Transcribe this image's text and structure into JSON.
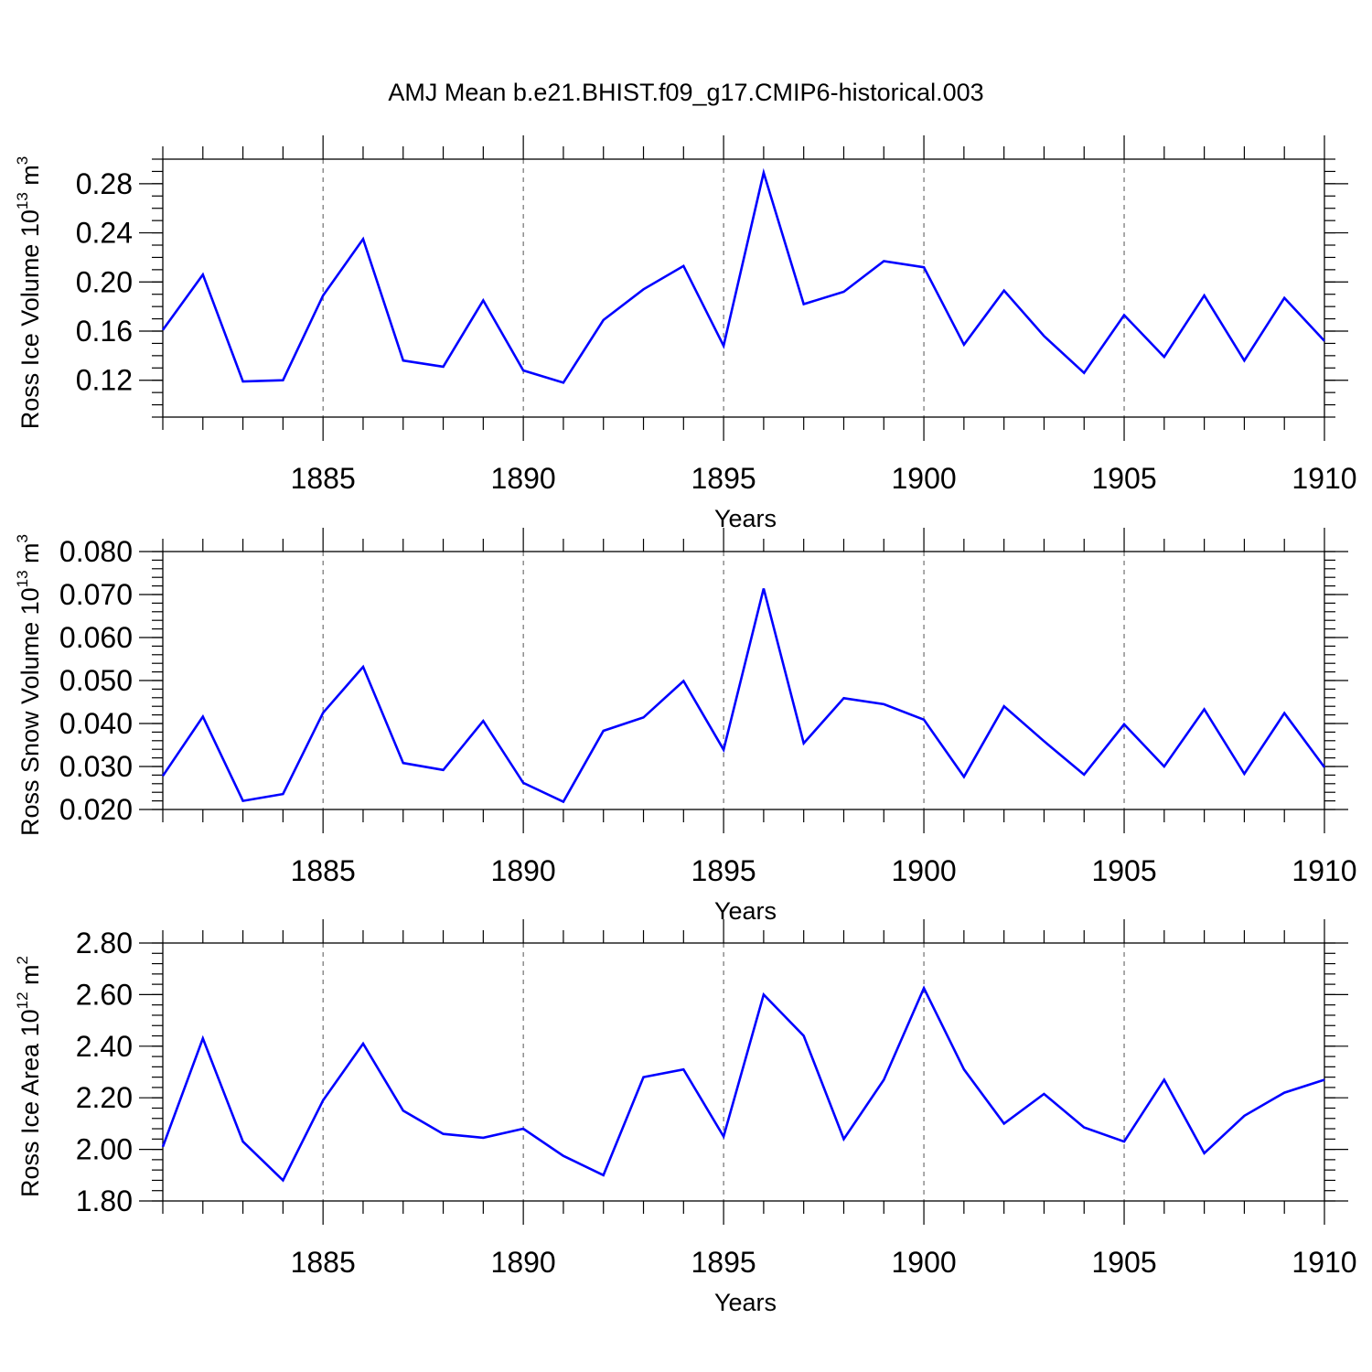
{
  "figure": {
    "title": "AMJ Mean b.e21.BHIST.f09_g17.CMIP6-historical.003"
  },
  "colors": {
    "series_line": "#0000ff",
    "axis": "#000000",
    "grid": "#555555"
  },
  "chart_data": [
    {
      "type": "line",
      "xlabel": "Years",
      "ylabel": {
        "text": "Ross Ice Volume 10",
        "superscript": "13",
        "unit": " m",
        "unit_superscript": "3"
      },
      "xlim": [
        1881,
        1910
      ],
      "ylim": [
        0.09,
        0.3
      ],
      "x_ticks": [
        1885,
        1890,
        1895,
        1900,
        1905,
        1910
      ],
      "x_tick_labels": [
        "1885",
        "1890",
        "1895",
        "1900",
        "1905",
        "1910"
      ],
      "y_ticks": [
        0.12,
        0.16,
        0.2,
        0.24,
        0.28
      ],
      "y_tick_labels": [
        "0.12",
        "0.16",
        "0.20",
        "0.24",
        "0.28"
      ],
      "y_minor_step": 0.01,
      "grid": "vertical-dashed",
      "x": [
        1881,
        1882,
        1883,
        1884,
        1885,
        1886,
        1887,
        1888,
        1889,
        1890,
        1891,
        1892,
        1893,
        1894,
        1895,
        1896,
        1897,
        1898,
        1899,
        1900,
        1901,
        1902,
        1903,
        1904,
        1905,
        1906,
        1907,
        1908,
        1909,
        1910
      ],
      "values": [
        0.161,
        0.206,
        0.119,
        0.12,
        0.189,
        0.235,
        0.136,
        0.131,
        0.185,
        0.128,
        0.118,
        0.169,
        0.194,
        0.213,
        0.148,
        0.289,
        0.182,
        0.192,
        0.217,
        0.212,
        0.149,
        0.193,
        0.156,
        0.126,
        0.173,
        0.139,
        0.189,
        0.136,
        0.187,
        0.152
      ]
    },
    {
      "type": "line",
      "xlabel": "Years",
      "ylabel": {
        "text": "Ross Snow Volume 10",
        "superscript": "13",
        "unit": " m",
        "unit_superscript": "3"
      },
      "xlim": [
        1881,
        1910
      ],
      "ylim": [
        0.02,
        0.08
      ],
      "x_ticks": [
        1885,
        1890,
        1895,
        1900,
        1905,
        1910
      ],
      "x_tick_labels": [
        "1885",
        "1890",
        "1895",
        "1900",
        "1905",
        "1910"
      ],
      "y_ticks": [
        0.02,
        0.03,
        0.04,
        0.05,
        0.06,
        0.07,
        0.08
      ],
      "y_tick_labels": [
        "0.020",
        "0.030",
        "0.040",
        "0.050",
        "0.060",
        "0.070",
        "0.080"
      ],
      "y_minor_step": 0.002,
      "grid": "vertical-dashed",
      "x": [
        1881,
        1882,
        1883,
        1884,
        1885,
        1886,
        1887,
        1888,
        1889,
        1890,
        1891,
        1892,
        1893,
        1894,
        1895,
        1896,
        1897,
        1898,
        1899,
        1900,
        1901,
        1902,
        1903,
        1904,
        1905,
        1906,
        1907,
        1908,
        1909,
        1910
      ],
      "values": [
        0.0278,
        0.0416,
        0.022,
        0.0236,
        0.0425,
        0.0532,
        0.0308,
        0.0292,
        0.0406,
        0.0262,
        0.0218,
        0.0383,
        0.0414,
        0.0499,
        0.0339,
        0.0714,
        0.0354,
        0.0459,
        0.0445,
        0.0409,
        0.0276,
        0.044,
        0.0359,
        0.0281,
        0.0398,
        0.03,
        0.0433,
        0.0283,
        0.0424,
        0.0298
      ]
    },
    {
      "type": "line",
      "xlabel": "Years",
      "ylabel": {
        "text": "Ross Ice Area 10",
        "superscript": "12",
        "unit": " m",
        "unit_superscript": "2"
      },
      "xlim": [
        1881,
        1910
      ],
      "ylim": [
        1.8,
        2.8
      ],
      "x_ticks": [
        1885,
        1890,
        1895,
        1900,
        1905,
        1910
      ],
      "x_tick_labels": [
        "1885",
        "1890",
        "1895",
        "1900",
        "1905",
        "1910"
      ],
      "y_ticks": [
        1.8,
        2.0,
        2.2,
        2.4,
        2.6,
        2.8
      ],
      "y_tick_labels": [
        "1.80",
        "2.00",
        "2.20",
        "2.40",
        "2.60",
        "2.80"
      ],
      "y_minor_step": 0.04,
      "grid": "vertical-dashed",
      "x": [
        1881,
        1882,
        1883,
        1884,
        1885,
        1886,
        1887,
        1888,
        1889,
        1890,
        1891,
        1892,
        1893,
        1894,
        1895,
        1896,
        1897,
        1898,
        1899,
        1900,
        1901,
        1902,
        1903,
        1904,
        1905,
        1906,
        1907,
        1908,
        1909,
        1910
      ],
      "values": [
        2.01,
        2.43,
        2.03,
        1.88,
        2.19,
        2.41,
        2.15,
        2.06,
        2.045,
        2.08,
        1.975,
        1.9,
        2.28,
        2.31,
        2.05,
        2.6,
        2.44,
        2.04,
        2.27,
        2.625,
        2.31,
        2.1,
        2.215,
        2.085,
        2.03,
        2.27,
        1.985,
        2.13,
        2.22,
        2.27
      ]
    }
  ]
}
